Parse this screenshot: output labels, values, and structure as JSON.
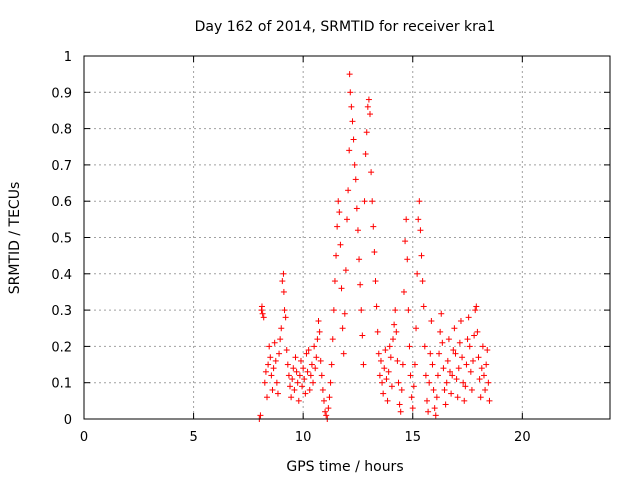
{
  "chart_data": {
    "type": "scatter",
    "title": "Day 162 of 2014, SRMTID for receiver kra1",
    "xlabel": "GPS time / hours",
    "ylabel": "SRMTID / TECUs",
    "xlim": [
      0,
      24
    ],
    "ylim": [
      0,
      1
    ],
    "xticks": [
      0,
      5,
      10,
      15,
      20
    ],
    "yticks": [
      0,
      0.1,
      0.2,
      0.3,
      0.4,
      0.5,
      0.6,
      0.7,
      0.8,
      0.9,
      1
    ],
    "grid": true,
    "marker": "+",
    "color": "#ff0000",
    "series": [
      {
        "points": [
          [
            8.0,
            0.0
          ],
          [
            8.05,
            0.01
          ],
          [
            8.1,
            0.3
          ],
          [
            8.12,
            0.31
          ],
          [
            8.15,
            0.29
          ],
          [
            8.2,
            0.28
          ],
          [
            8.25,
            0.1
          ],
          [
            8.3,
            0.13
          ],
          [
            8.35,
            0.06
          ],
          [
            8.4,
            0.15
          ],
          [
            8.45,
            0.2
          ],
          [
            8.5,
            0.17
          ],
          [
            8.55,
            0.12
          ],
          [
            8.6,
            0.08
          ],
          [
            8.65,
            0.14
          ],
          [
            8.7,
            0.21
          ],
          [
            8.75,
            0.16
          ],
          [
            8.8,
            0.1
          ],
          [
            8.85,
            0.07
          ],
          [
            8.9,
            0.18
          ],
          [
            8.95,
            0.22
          ],
          [
            9.0,
            0.25
          ],
          [
            9.05,
            0.38
          ],
          [
            9.1,
            0.4
          ],
          [
            9.12,
            0.35
          ],
          [
            9.15,
            0.3
          ],
          [
            9.2,
            0.28
          ],
          [
            9.25,
            0.19
          ],
          [
            9.3,
            0.15
          ],
          [
            9.35,
            0.12
          ],
          [
            9.4,
            0.09
          ],
          [
            9.45,
            0.06
          ],
          [
            9.5,
            0.11
          ],
          [
            9.55,
            0.14
          ],
          [
            9.6,
            0.08
          ],
          [
            9.65,
            0.17
          ],
          [
            9.7,
            0.13
          ],
          [
            9.75,
            0.1
          ],
          [
            9.8,
            0.05
          ],
          [
            9.85,
            0.12
          ],
          [
            9.9,
            0.16
          ],
          [
            9.95,
            0.09
          ],
          [
            10.0,
            0.14
          ],
          [
            10.05,
            0.11
          ],
          [
            10.1,
            0.07
          ],
          [
            10.15,
            0.18
          ],
          [
            10.2,
            0.13
          ],
          [
            10.25,
            0.19
          ],
          [
            10.3,
            0.08
          ],
          [
            10.35,
            0.12
          ],
          [
            10.4,
            0.15
          ],
          [
            10.45,
            0.1
          ],
          [
            10.5,
            0.2
          ],
          [
            10.55,
            0.14
          ],
          [
            10.6,
            0.17
          ],
          [
            10.65,
            0.22
          ],
          [
            10.7,
            0.27
          ],
          [
            10.75,
            0.24
          ],
          [
            10.8,
            0.16
          ],
          [
            10.85,
            0.12
          ],
          [
            10.9,
            0.08
          ],
          [
            10.95,
            0.05
          ],
          [
            11.0,
            0.02
          ],
          [
            11.05,
            0.01
          ],
          [
            11.1,
            0.0
          ],
          [
            11.15,
            0.03
          ],
          [
            11.2,
            0.06
          ],
          [
            11.25,
            0.1
          ],
          [
            11.3,
            0.15
          ],
          [
            11.35,
            0.22
          ],
          [
            11.4,
            0.3
          ],
          [
            11.45,
            0.38
          ],
          [
            11.5,
            0.45
          ],
          [
            11.55,
            0.53
          ],
          [
            11.6,
            0.6
          ],
          [
            11.65,
            0.57
          ],
          [
            11.7,
            0.48
          ],
          [
            11.75,
            0.36
          ],
          [
            11.8,
            0.25
          ],
          [
            11.85,
            0.18
          ],
          [
            11.9,
            0.29
          ],
          [
            11.95,
            0.41
          ],
          [
            12.0,
            0.55
          ],
          [
            12.05,
            0.63
          ],
          [
            12.1,
            0.74
          ],
          [
            12.12,
            0.95
          ],
          [
            12.15,
            0.9
          ],
          [
            12.2,
            0.86
          ],
          [
            12.25,
            0.82
          ],
          [
            12.3,
            0.77
          ],
          [
            12.35,
            0.7
          ],
          [
            12.4,
            0.66
          ],
          [
            12.45,
            0.58
          ],
          [
            12.5,
            0.52
          ],
          [
            12.55,
            0.44
          ],
          [
            12.6,
            0.37
          ],
          [
            12.65,
            0.3
          ],
          [
            12.7,
            0.23
          ],
          [
            12.75,
            0.15
          ],
          [
            12.8,
            0.6
          ],
          [
            12.85,
            0.73
          ],
          [
            12.9,
            0.79
          ],
          [
            12.95,
            0.86
          ],
          [
            13.0,
            0.88
          ],
          [
            13.05,
            0.84
          ],
          [
            13.1,
            0.68
          ],
          [
            13.15,
            0.6
          ],
          [
            13.2,
            0.53
          ],
          [
            13.25,
            0.46
          ],
          [
            13.3,
            0.38
          ],
          [
            13.35,
            0.31
          ],
          [
            13.4,
            0.24
          ],
          [
            13.45,
            0.18
          ],
          [
            13.5,
            0.12
          ],
          [
            13.55,
            0.16
          ],
          [
            13.6,
            0.1
          ],
          [
            13.65,
            0.07
          ],
          [
            13.7,
            0.14
          ],
          [
            13.75,
            0.19
          ],
          [
            13.8,
            0.11
          ],
          [
            13.85,
            0.05
          ],
          [
            13.9,
            0.13
          ],
          [
            13.95,
            0.2
          ],
          [
            14.0,
            0.17
          ],
          [
            14.05,
            0.09
          ],
          [
            14.1,
            0.22
          ],
          [
            14.15,
            0.26
          ],
          [
            14.2,
            0.3
          ],
          [
            14.25,
            0.24
          ],
          [
            14.3,
            0.16
          ],
          [
            14.35,
            0.1
          ],
          [
            14.4,
            0.04
          ],
          [
            14.45,
            0.02
          ],
          [
            14.5,
            0.08
          ],
          [
            14.55,
            0.15
          ],
          [
            14.6,
            0.35
          ],
          [
            14.65,
            0.49
          ],
          [
            14.7,
            0.55
          ],
          [
            14.75,
            0.44
          ],
          [
            14.8,
            0.3
          ],
          [
            14.85,
            0.2
          ],
          [
            14.9,
            0.12
          ],
          [
            14.95,
            0.06
          ],
          [
            15.0,
            0.03
          ],
          [
            15.05,
            0.09
          ],
          [
            15.1,
            0.15
          ],
          [
            15.15,
            0.25
          ],
          [
            15.2,
            0.4
          ],
          [
            15.25,
            0.55
          ],
          [
            15.3,
            0.6
          ],
          [
            15.35,
            0.52
          ],
          [
            15.4,
            0.45
          ],
          [
            15.45,
            0.38
          ],
          [
            15.5,
            0.31
          ],
          [
            15.55,
            0.2
          ],
          [
            15.6,
            0.12
          ],
          [
            15.65,
            0.05
          ],
          [
            15.7,
            0.02
          ],
          [
            15.75,
            0.1
          ],
          [
            15.8,
            0.18
          ],
          [
            15.85,
            0.27
          ],
          [
            15.9,
            0.15
          ],
          [
            15.95,
            0.08
          ],
          [
            16.0,
            0.03
          ],
          [
            16.05,
            0.01
          ],
          [
            16.1,
            0.06
          ],
          [
            16.15,
            0.12
          ],
          [
            16.2,
            0.18
          ],
          [
            16.25,
            0.24
          ],
          [
            16.3,
            0.29
          ],
          [
            16.35,
            0.21
          ],
          [
            16.4,
            0.14
          ],
          [
            16.45,
            0.08
          ],
          [
            16.5,
            0.04
          ],
          [
            16.55,
            0.1
          ],
          [
            16.6,
            0.16
          ],
          [
            16.65,
            0.22
          ],
          [
            16.7,
            0.13
          ],
          [
            16.75,
            0.07
          ],
          [
            16.8,
            0.12
          ],
          [
            16.85,
            0.19
          ],
          [
            16.9,
            0.25
          ],
          [
            16.95,
            0.18
          ],
          [
            17.0,
            0.11
          ],
          [
            17.05,
            0.06
          ],
          [
            17.1,
            0.14
          ],
          [
            17.15,
            0.21
          ],
          [
            17.2,
            0.27
          ],
          [
            17.25,
            0.17
          ],
          [
            17.3,
            0.1
          ],
          [
            17.35,
            0.05
          ],
          [
            17.4,
            0.09
          ],
          [
            17.45,
            0.15
          ],
          [
            17.5,
            0.22
          ],
          [
            17.55,
            0.28
          ],
          [
            17.6,
            0.2
          ],
          [
            17.65,
            0.13
          ],
          [
            17.7,
            0.08
          ],
          [
            17.75,
            0.16
          ],
          [
            17.8,
            0.23
          ],
          [
            17.85,
            0.3
          ],
          [
            17.9,
            0.31
          ],
          [
            17.95,
            0.24
          ],
          [
            18.0,
            0.17
          ],
          [
            18.05,
            0.11
          ],
          [
            18.1,
            0.06
          ],
          [
            18.15,
            0.14
          ],
          [
            18.2,
            0.2
          ],
          [
            18.25,
            0.12
          ],
          [
            18.3,
            0.08
          ],
          [
            18.35,
            0.15
          ],
          [
            18.4,
            0.19
          ],
          [
            18.45,
            0.1
          ],
          [
            18.5,
            0.05
          ]
        ]
      }
    ]
  }
}
